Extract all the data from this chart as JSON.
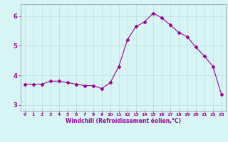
{
  "x": [
    0,
    1,
    2,
    3,
    4,
    5,
    6,
    7,
    8,
    9,
    10,
    11,
    12,
    13,
    14,
    15,
    16,
    17,
    18,
    19,
    20,
    21,
    22,
    23
  ],
  "y": [
    3.7,
    3.7,
    3.7,
    3.8,
    3.8,
    3.75,
    3.7,
    3.65,
    3.65,
    3.55,
    3.75,
    4.3,
    5.2,
    5.65,
    5.8,
    6.1,
    5.95,
    5.7,
    5.45,
    5.3,
    4.95,
    4.65,
    4.3,
    3.35
  ],
  "line_color": "#990099",
  "marker": "D",
  "marker_size": 2.5,
  "xlabel": "Windchill (Refroidissement éolien,°C)",
  "xlim": [
    -0.5,
    23.5
  ],
  "ylim": [
    2.8,
    6.4
  ],
  "yticks": [
    3,
    4,
    5,
    6
  ],
  "xticks": [
    0,
    1,
    2,
    3,
    4,
    5,
    6,
    7,
    8,
    9,
    10,
    11,
    12,
    13,
    14,
    15,
    16,
    17,
    18,
    19,
    20,
    21,
    22,
    23
  ],
  "bg_color": "#d8f5f5",
  "grid_color": "#b8dede",
  "tick_label_color": "#990099",
  "xlabel_color": "#990099",
  "spine_color": "#888899"
}
